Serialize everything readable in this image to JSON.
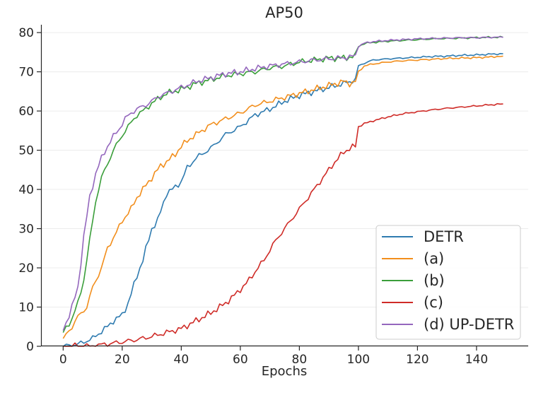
{
  "chart_data": {
    "type": "line",
    "title": "AP50",
    "xlabel": "Epochs",
    "ylabel": "",
    "xlim": [
      -7.5,
      157.5
    ],
    "ylim": [
      0,
      82
    ],
    "xticks": [
      0,
      20,
      40,
      60,
      80,
      100,
      120,
      140
    ],
    "yticks": [
      0,
      10,
      20,
      30,
      40,
      50,
      60,
      70,
      80
    ],
    "grid": "horizontal",
    "legend_position": "lower-right",
    "series": [
      {
        "name": "DETR",
        "color": "#2f7bb0",
        "x": [
          0,
          5,
          10,
          15,
          17,
          20,
          22,
          25,
          27,
          30,
          32,
          35,
          37,
          40,
          42,
          45,
          48,
          50,
          55,
          60,
          65,
          70,
          75,
          80,
          85,
          90,
          95,
          97,
          99,
          100,
          102,
          105,
          110,
          115,
          120,
          125,
          130,
          135,
          140,
          145,
          149
        ],
        "y": [
          0,
          0.5,
          2,
          5,
          6.5,
          8,
          11,
          18,
          22,
          30,
          32,
          39,
          40,
          42,
          45.5,
          48,
          49.5,
          50.5,
          54,
          56,
          59,
          60.5,
          62.5,
          64,
          65,
          66,
          67,
          67.5,
          68,
          71.5,
          72.2,
          73,
          73.3,
          73.5,
          73.7,
          73.9,
          74,
          74.2,
          74.3,
          74.5,
          74.6
        ]
      },
      {
        "name": "(a)",
        "color": "#f28e1c",
        "x": [
          0,
          3,
          5,
          8,
          10,
          13,
          15,
          18,
          20,
          23,
          25,
          28,
          30,
          33,
          35,
          38,
          40,
          43,
          45,
          48,
          50,
          55,
          60,
          65,
          70,
          75,
          80,
          85,
          90,
          95,
          97,
          99,
          100,
          102,
          105,
          110,
          115,
          120,
          125,
          130,
          135,
          140,
          145,
          149
        ],
        "y": [
          2,
          5,
          7.5,
          10,
          15,
          20,
          25,
          29,
          32,
          35,
          38,
          41,
          43,
          46,
          47,
          49,
          51,
          53,
          54,
          55.5,
          56.5,
          58,
          59.5,
          61.5,
          62.5,
          63.5,
          64.5,
          65.5,
          66.5,
          67.5,
          67,
          67.5,
          70,
          71.5,
          72,
          72.5,
          72.8,
          73,
          73.2,
          73.4,
          73.5,
          73.6,
          73.8,
          74
        ]
      },
      {
        "name": "(b)",
        "color": "#3a9e3a",
        "x": [
          0,
          3,
          5,
          7,
          9,
          11,
          13,
          15,
          17,
          19,
          21,
          23,
          25,
          28,
          30,
          33,
          35,
          40,
          45,
          50,
          55,
          60,
          65,
          70,
          75,
          80,
          85,
          90,
          95,
          99,
          100,
          102,
          105,
          110,
          115,
          120,
          125,
          130,
          135,
          140,
          145,
          149
        ],
        "y": [
          3.5,
          7,
          11,
          17,
          27,
          37,
          43,
          46.5,
          50,
          52.5,
          55,
          57,
          59,
          60.5,
          62,
          63.5,
          64.5,
          65.5,
          67,
          68,
          69,
          69.5,
          70,
          71,
          71.5,
          72.5,
          73,
          73.5,
          73.5,
          74,
          76.5,
          77.2,
          77.5,
          77.8,
          78,
          78.2,
          78.4,
          78.5,
          78.6,
          78.7,
          78.8,
          78.8
        ]
      },
      {
        "name": "(c)",
        "color": "#cf2b27",
        "x": [
          0,
          10,
          12,
          15,
          18,
          20,
          25,
          30,
          35,
          40,
          45,
          50,
          55,
          58,
          60,
          62,
          65,
          68,
          70,
          72,
          75,
          78,
          80,
          82,
          85,
          88,
          90,
          92,
          95,
          97,
          99,
          100,
          102,
          105,
          110,
          115,
          120,
          125,
          130,
          135,
          140,
          145,
          149
        ],
        "y": [
          0,
          0,
          0.3,
          0.6,
          0.9,
          1.1,
          1.7,
          2.5,
          3.5,
          4.5,
          6.5,
          8.5,
          11,
          13,
          14.5,
          16,
          19,
          22,
          24.5,
          27,
          30,
          33,
          35,
          37,
          40,
          43,
          45,
          47,
          49.5,
          50.5,
          51,
          56,
          56.8,
          57.5,
          58.5,
          59.3,
          59.8,
          60.3,
          60.7,
          61,
          61.3,
          61.6,
          61.8
        ]
      },
      {
        "name": "(d) UP-DETR",
        "color": "#9467bd",
        "x": [
          0,
          3,
          5,
          7,
          9,
          11,
          13,
          15,
          17,
          19,
          21,
          23,
          25,
          28,
          30,
          33,
          35,
          40,
          45,
          50,
          55,
          60,
          65,
          70,
          75,
          80,
          85,
          90,
          95,
          99,
          100,
          102,
          105,
          110,
          115,
          120,
          125,
          130,
          135,
          140,
          145,
          149
        ],
        "y": [
          4,
          10,
          15,
          28,
          38,
          44,
          48,
          51,
          53.5,
          55.5,
          58,
          59.5,
          60.5,
          61.5,
          62.5,
          64,
          64.5,
          66,
          67.5,
          68.5,
          69.5,
          70,
          70.8,
          71.5,
          72,
          72.5,
          73,
          73.3,
          73.6,
          74,
          76.5,
          77.3,
          77.7,
          78,
          78.2,
          78.4,
          78.5,
          78.6,
          78.7,
          78.7,
          78.8,
          78.8
        ]
      }
    ]
  }
}
